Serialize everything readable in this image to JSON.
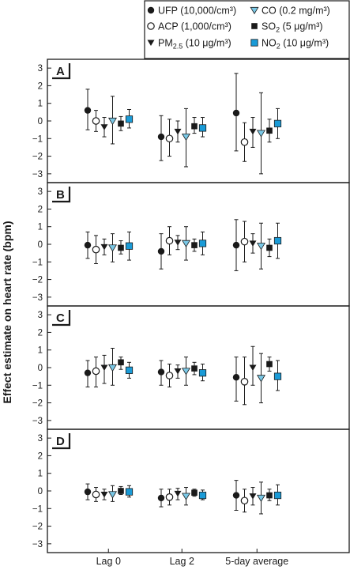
{
  "chart_data": {
    "type": "scatter",
    "subtype": "point estimates with 95% confidence intervals, four stacked panels",
    "ylabel": "Effect estimate on heart rate (bpm)",
    "categories": [
      "Lag 0",
      "Lag 2",
      "5-day average"
    ],
    "ylim": [
      -3.5,
      3.5
    ],
    "yticks": [
      "3",
      "2",
      "1",
      "0",
      "−1",
      "−2",
      "−3"
    ],
    "grid": false,
    "legend_position": "top-right",
    "legend": [
      {
        "marker": "filled-circle",
        "label": "UFP (10,000/cm³)",
        "color": "#1a1a1a"
      },
      {
        "marker": "open-circle",
        "label": "ACP (1,000/cm³)",
        "color": "#ffffff"
      },
      {
        "marker": "filled-triangle-down",
        "label_main": "PM",
        "label_sub": "2.5",
        "label_rest": " (10 μg/m³)",
        "color": "#1a1a1a"
      },
      {
        "marker": "blue-triangle-down",
        "label": "CO (0.2 mg/m³)",
        "color": "#7ac8e6"
      },
      {
        "marker": "filled-square",
        "label_main": "SO",
        "label_sub": "2",
        "label_rest": " (5 μg/m³)",
        "color": "#1a1a1a"
      },
      {
        "marker": "blue-square",
        "label_main": "NO",
        "label_sub": "2",
        "label_rest": " (10 μg/m³)",
        "color": "#1a9bd7"
      }
    ],
    "series_order": [
      "UFP",
      "ACP",
      "PM2.5",
      "CO",
      "SO2",
      "NO2"
    ],
    "panels": [
      {
        "label": "A",
        "groups": [
          {
            "category": "Lag 0",
            "points": [
              {
                "series": "UFP",
                "y": 0.6,
                "lo": -0.5,
                "hi": 1.8
              },
              {
                "series": "ACP",
                "y": 0.0,
                "lo": -0.6,
                "hi": 0.6
              },
              {
                "series": "PM2.5",
                "y": -0.35,
                "lo": -0.9,
                "hi": 0.2
              },
              {
                "series": "CO",
                "y": 0.0,
                "lo": -1.3,
                "hi": 1.4
              },
              {
                "series": "SO2",
                "y": -0.15,
                "lo": -0.55,
                "hi": 0.25
              },
              {
                "series": "NO2",
                "y": 0.1,
                "lo": -0.4,
                "hi": 0.65
              }
            ]
          },
          {
            "category": "Lag 2",
            "points": [
              {
                "series": "UFP",
                "y": -0.9,
                "lo": -2.25,
                "hi": 0.3
              },
              {
                "series": "ACP",
                "y": -1.0,
                "lo": -2.0,
                "hi": 0.1
              },
              {
                "series": "PM2.5",
                "y": -0.6,
                "lo": -1.2,
                "hi": 0.0
              },
              {
                "series": "CO",
                "y": -0.9,
                "lo": -2.6,
                "hi": 0.7
              },
              {
                "series": "SO2",
                "y": -0.3,
                "lo": -0.7,
                "hi": 0.2
              },
              {
                "series": "NO2",
                "y": -0.4,
                "lo": -0.9,
                "hi": 0.2
              }
            ]
          },
          {
            "category": "5-day average",
            "points": [
              {
                "series": "UFP",
                "y": 0.45,
                "lo": -1.7,
                "hi": 2.7
              },
              {
                "series": "ACP",
                "y": -1.2,
                "lo": -2.3,
                "hi": -0.1
              },
              {
                "series": "PM2.5",
                "y": -0.6,
                "lo": -1.5,
                "hi": 0.2
              },
              {
                "series": "CO",
                "y": -0.7,
                "lo": -3.0,
                "hi": 1.6
              },
              {
                "series": "SO2",
                "y": -0.55,
                "lo": -1.2,
                "hi": 0.1
              },
              {
                "series": "NO2",
                "y": -0.15,
                "lo": -1.0,
                "hi": 0.7
              }
            ]
          }
        ]
      },
      {
        "label": "B",
        "groups": [
          {
            "category": "Lag 0",
            "points": [
              {
                "series": "UFP",
                "y": -0.05,
                "lo": -0.8,
                "hi": 0.7
              },
              {
                "series": "ACP",
                "y": -0.3,
                "lo": -1.1,
                "hi": 0.5
              },
              {
                "series": "PM2.5",
                "y": -0.15,
                "lo": -0.6,
                "hi": 0.3
              },
              {
                "series": "CO",
                "y": -0.2,
                "lo": -1.0,
                "hi": 0.6
              },
              {
                "series": "SO2",
                "y": -0.2,
                "lo": -0.55,
                "hi": 0.2
              },
              {
                "series": "NO2",
                "y": -0.1,
                "lo": -0.9,
                "hi": 0.7
              }
            ]
          },
          {
            "category": "Lag 2",
            "points": [
              {
                "series": "UFP",
                "y": -0.4,
                "lo": -1.4,
                "hi": 0.6
              },
              {
                "series": "ACP",
                "y": 0.2,
                "lo": -0.6,
                "hi": 1.0
              },
              {
                "series": "PM2.5",
                "y": 0.1,
                "lo": -0.3,
                "hi": 0.5
              },
              {
                "series": "CO",
                "y": 0.05,
                "lo": -0.9,
                "hi": 1.0
              },
              {
                "series": "SO2",
                "y": -0.05,
                "lo": -0.4,
                "hi": 0.3
              },
              {
                "series": "NO2",
                "y": 0.05,
                "lo": -0.6,
                "hi": 0.7
              }
            ]
          },
          {
            "category": "5-day average",
            "points": [
              {
                "series": "UFP",
                "y": -0.05,
                "lo": -1.5,
                "hi": 1.4
              },
              {
                "series": "ACP",
                "y": 0.15,
                "lo": -1.0,
                "hi": 1.3
              },
              {
                "series": "PM2.5",
                "y": 0.05,
                "lo": -0.5,
                "hi": 0.6
              },
              {
                "series": "CO",
                "y": -0.1,
                "lo": -1.4,
                "hi": 1.2
              },
              {
                "series": "SO2",
                "y": -0.2,
                "lo": -0.7,
                "hi": 0.3
              },
              {
                "series": "NO2",
                "y": 0.2,
                "lo": -0.8,
                "hi": 1.2
              }
            ]
          }
        ]
      },
      {
        "label": "C",
        "groups": [
          {
            "category": "Lag 0",
            "points": [
              {
                "series": "UFP",
                "y": -0.3,
                "lo": -1.1,
                "hi": 0.4
              },
              {
                "series": "ACP",
                "y": -0.2,
                "lo": -1.1,
                "hi": 0.6
              },
              {
                "series": "PM2.5",
                "y": 0.0,
                "lo": -0.9,
                "hi": 0.7
              },
              {
                "series": "CO",
                "y": 0.0,
                "lo": -1.0,
                "hi": 1.1
              },
              {
                "series": "SO2",
                "y": 0.3,
                "lo": -0.1,
                "hi": 0.6
              },
              {
                "series": "NO2",
                "y": -0.15,
                "lo": -0.6,
                "hi": 0.3
              }
            ]
          },
          {
            "category": "Lag 2",
            "points": [
              {
                "series": "UFP",
                "y": -0.25,
                "lo": -1.0,
                "hi": 0.4
              },
              {
                "series": "ACP",
                "y": -0.45,
                "lo": -1.1,
                "hi": 0.2
              },
              {
                "series": "PM2.5",
                "y": -0.2,
                "lo": -0.6,
                "hi": 0.15
              },
              {
                "series": "CO",
                "y": -0.2,
                "lo": -1.0,
                "hi": 0.6
              },
              {
                "series": "SO2",
                "y": -0.05,
                "lo": -0.4,
                "hi": 0.3
              },
              {
                "series": "NO2",
                "y": -0.3,
                "lo": -0.75,
                "hi": 0.2
              }
            ]
          },
          {
            "category": "5-day average",
            "points": [
              {
                "series": "UFP",
                "y": -0.55,
                "lo": -1.9,
                "hi": 0.6
              },
              {
                "series": "ACP",
                "y": -0.8,
                "lo": -2.1,
                "hi": 0.6
              },
              {
                "series": "PM2.5",
                "y": 0.0,
                "lo": -1.0,
                "hi": 1.2
              },
              {
                "series": "CO",
                "y": -0.6,
                "lo": -2.0,
                "hi": 0.8
              },
              {
                "series": "SO2",
                "y": 0.2,
                "lo": -0.2,
                "hi": 0.6
              },
              {
                "series": "NO2",
                "y": -0.5,
                "lo": -1.3,
                "hi": 0.4
              }
            ]
          }
        ]
      },
      {
        "label": "D",
        "groups": [
          {
            "category": "Lag 0",
            "points": [
              {
                "series": "UFP",
                "y": -0.05,
                "lo": -0.5,
                "hi": 0.4
              },
              {
                "series": "ACP",
                "y": -0.2,
                "lo": -0.6,
                "hi": 0.2
              },
              {
                "series": "PM2.5",
                "y": -0.2,
                "lo": -0.5,
                "hi": 0.1
              },
              {
                "series": "CO",
                "y": -0.2,
                "lo": -0.6,
                "hi": 0.3
              },
              {
                "series": "SO2",
                "y": 0.0,
                "lo": -0.2,
                "hi": 0.25
              },
              {
                "series": "NO2",
                "y": -0.05,
                "lo": -0.35,
                "hi": 0.3
              }
            ]
          },
          {
            "category": "Lag 2",
            "points": [
              {
                "series": "UFP",
                "y": -0.4,
                "lo": -0.9,
                "hi": 0.1
              },
              {
                "series": "ACP",
                "y": -0.35,
                "lo": -0.8,
                "hi": 0.1
              },
              {
                "series": "PM2.5",
                "y": -0.15,
                "lo": -0.5,
                "hi": 0.15
              },
              {
                "series": "CO",
                "y": -0.3,
                "lo": -0.8,
                "hi": 0.2
              },
              {
                "series": "SO2",
                "y": -0.1,
                "lo": -0.3,
                "hi": 0.1
              },
              {
                "series": "NO2",
                "y": -0.25,
                "lo": -0.5,
                "hi": 0.05
              }
            ]
          },
          {
            "category": "5-day average",
            "points": [
              {
                "series": "UFP",
                "y": -0.25,
                "lo": -1.1,
                "hi": 0.6
              },
              {
                "series": "ACP",
                "y": -0.55,
                "lo": -1.2,
                "hi": 0.1
              },
              {
                "series": "PM2.5",
                "y": -0.3,
                "lo": -0.8,
                "hi": 0.2
              },
              {
                "series": "CO",
                "y": -0.4,
                "lo": -1.3,
                "hi": 0.5
              },
              {
                "series": "SO2",
                "y": -0.25,
                "lo": -0.55,
                "hi": 0.1
              },
              {
                "series": "NO2",
                "y": -0.25,
                "lo": -0.8,
                "hi": 0.35
              }
            ]
          }
        ]
      }
    ]
  }
}
